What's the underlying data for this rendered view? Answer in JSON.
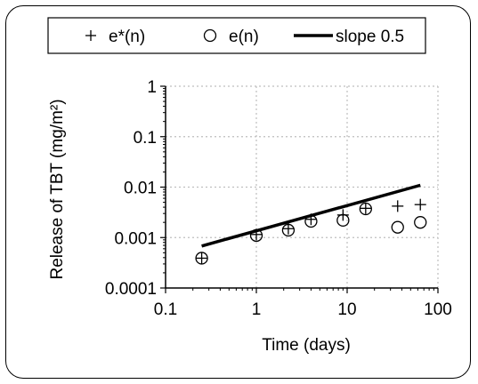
{
  "chart_data": {
    "type": "scatter",
    "xlabel": "Time (days)",
    "ylabel": "Release of TBT (mg/m²)",
    "xscale": "log",
    "yscale": "log",
    "xlim": [
      0.1,
      100
    ],
    "ylim": [
      0.0001,
      1
    ],
    "x_ticks": [
      "0.1",
      "1",
      "10",
      "100"
    ],
    "y_ticks": [
      "0.0001",
      "0.001",
      "0.01",
      "0.1",
      "1"
    ],
    "grid": true,
    "legend_position": "top",
    "series": [
      {
        "name": "e*(n)",
        "marker": "plus",
        "x": [
          0.25,
          1,
          2.25,
          4,
          9,
          16,
          36,
          64
        ],
        "y": [
          0.00039,
          0.00115,
          0.0015,
          0.0023,
          0.0028,
          0.0038,
          0.0042,
          0.0045
        ]
      },
      {
        "name": "e(n)",
        "marker": "circle",
        "x": [
          0.25,
          1,
          2.25,
          4,
          9,
          16,
          36,
          64
        ],
        "y": [
          0.00039,
          0.0011,
          0.0014,
          0.0021,
          0.0022,
          0.0037,
          0.0016,
          0.002
        ]
      },
      {
        "name": "slope 0.5",
        "marker": "line",
        "x": [
          0.25,
          64
        ],
        "y": [
          0.00068,
          0.0109
        ]
      }
    ],
    "colors": {
      "ink": "#000000",
      "grid": "#bfbfbf"
    }
  }
}
